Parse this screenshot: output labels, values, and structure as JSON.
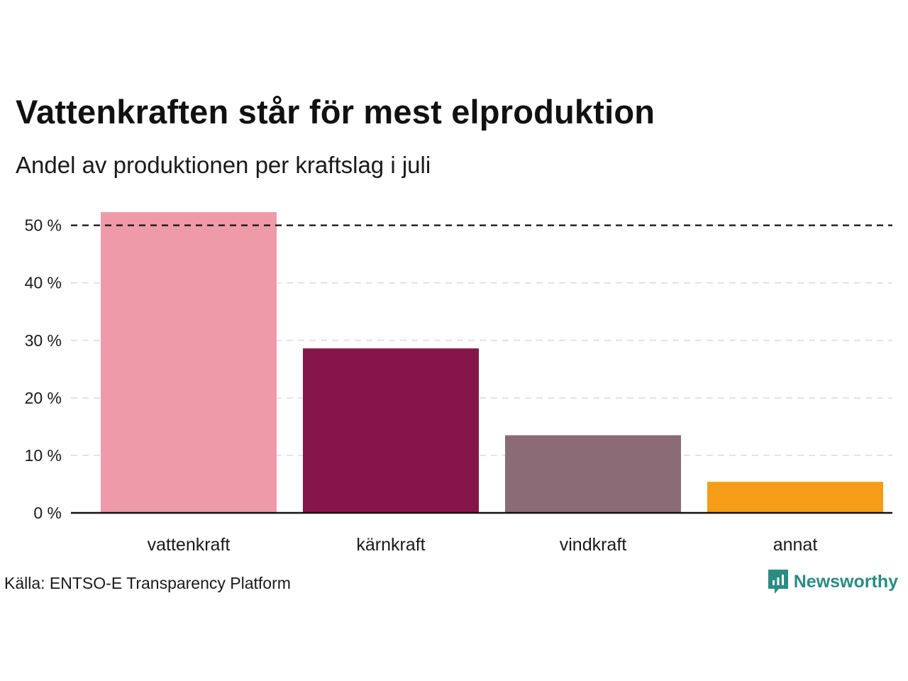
{
  "header": {
    "title": "Vattenkraften står för mest elproduktion",
    "subtitle": "Andel av produktionen per kraftslag i juli"
  },
  "footer": {
    "source": "Källa: ENTSO-E Transparency Platform",
    "brand_name": "Newsworthy",
    "brand_color": "#2a8c82"
  },
  "chart_data": {
    "type": "bar",
    "categories": [
      "vattenkraft",
      "kärnkraft",
      "vindkraft",
      "annat"
    ],
    "values": [
      52.3,
      28.6,
      13.5,
      5.4
    ],
    "colors": [
      "#ef9aa8",
      "#861649",
      "#8b6b76",
      "#f59d16"
    ],
    "ylim": [
      0,
      52.3
    ],
    "yticks": [
      0,
      10,
      20,
      30,
      40,
      50
    ],
    "ytick_labels": [
      "0 %",
      "10 %",
      "20 %",
      "30 %",
      "40 %",
      "50 %"
    ],
    "reference_line": 50,
    "grid": true,
    "legend": false
  }
}
